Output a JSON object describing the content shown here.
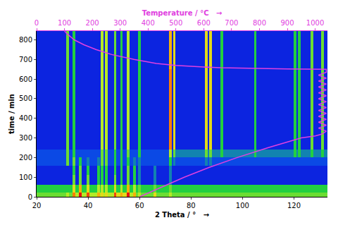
{
  "chart_data": {
    "type": "heatmap",
    "x_label": "2 Theta / °   →",
    "y_label": "time / min",
    "x2_label": "Temperature / °C   →",
    "x": [
      20,
      31.5,
      32.5,
      34,
      35,
      36.5,
      37.5,
      39.5,
      40.5,
      43.5,
      44.5,
      45,
      46,
      46.5,
      47.5,
      50,
      51,
      52.5,
      53.5,
      55,
      56,
      57.5,
      58.5,
      59.5,
      60.5,
      65.5,
      66.5,
      71.5,
      72.5,
      73,
      74,
      85.5,
      86.5,
      87,
      88,
      91.5,
      92.5,
      104.5,
      105.5,
      120,
      121,
      121.5,
      122.5,
      126.5,
      127.5,
      130.5,
      131.5,
      133
    ],
    "y": [
      0,
      20,
      60,
      110,
      160,
      200,
      240,
      650,
      845
    ],
    "cells": [
      [
        4,
        5,
        4,
        8,
        5,
        10,
        5,
        9,
        5,
        7,
        5,
        6,
        5,
        6,
        5,
        9,
        6,
        7,
        6,
        10,
        5,
        7,
        4,
        5,
        4,
        6,
        4,
        5,
        4,
        4,
        4,
        4,
        4,
        4,
        4,
        4,
        4,
        4,
        4,
        4,
        4,
        4,
        4,
        4,
        4,
        4,
        4
      ],
      [
        3,
        3,
        3,
        6,
        3,
        7,
        3,
        6,
        3,
        5,
        3,
        5,
        3,
        5,
        3,
        6,
        3,
        5,
        3,
        7,
        3,
        5,
        3,
        4,
        3,
        4,
        3,
        4,
        3,
        3,
        3,
        3,
        3,
        3,
        3,
        3,
        3,
        3,
        3,
        3,
        3,
        3,
        3,
        3,
        3,
        3,
        3
      ],
      [
        0,
        0,
        0,
        4,
        0,
        4,
        0,
        4,
        0,
        3,
        0,
        3,
        0,
        3,
        0,
        4,
        0,
        3,
        0,
        4,
        0,
        3,
        0,
        2,
        0,
        2,
        0,
        2,
        0,
        0,
        0,
        0,
        0,
        0,
        0,
        0,
        0,
        0,
        0,
        0,
        0,
        0,
        0,
        0,
        0,
        0,
        0
      ],
      [
        0,
        0,
        0,
        3,
        0,
        4,
        0,
        3,
        0,
        3,
        0,
        3,
        0,
        3,
        0,
        3,
        0,
        3,
        0,
        4,
        0,
        3,
        0,
        2,
        0,
        2,
        0,
        2,
        0,
        0,
        0,
        0,
        0,
        0,
        0,
        0,
        0,
        0,
        0,
        0,
        0,
        0,
        0,
        0,
        0,
        0,
        0
      ],
      [
        1,
        4,
        1,
        4,
        1,
        3,
        1,
        2,
        1,
        2,
        1,
        4,
        1,
        4,
        1,
        3,
        1,
        3,
        1,
        3,
        1,
        2,
        1,
        2,
        1,
        1,
        1,
        3,
        1,
        2,
        1,
        2,
        1,
        2,
        1,
        1,
        1,
        1,
        1,
        1,
        1,
        1,
        1,
        1,
        1,
        1,
        1
      ],
      [
        1,
        4,
        1,
        3,
        1,
        1,
        1,
        1,
        1,
        1,
        1,
        4,
        1,
        4,
        1,
        3,
        1,
        3,
        1,
        4,
        1,
        1,
        1,
        3,
        1,
        1,
        1,
        5,
        1,
        4,
        2,
        4,
        2,
        4,
        2,
        3,
        2,
        3,
        2,
        3,
        2,
        3,
        2,
        3,
        2,
        3,
        2
      ],
      [
        0,
        4,
        0,
        3,
        0,
        0,
        0,
        0,
        0,
        0,
        0,
        5,
        0,
        5,
        0,
        4,
        0,
        3,
        0,
        5,
        0,
        0,
        0,
        3,
        0,
        0,
        0,
        8,
        0,
        6,
        0,
        6,
        0,
        6,
        0,
        3,
        0,
        3,
        0,
        3,
        0,
        3,
        0,
        4,
        0,
        4,
        0
      ],
      [
        0,
        4,
        0,
        3,
        0,
        0,
        0,
        0,
        0,
        0,
        0,
        5,
        0,
        5,
        0,
        4,
        0,
        3,
        0,
        5,
        0,
        0,
        0,
        3,
        0,
        0,
        0,
        7,
        0,
        6,
        0,
        6,
        0,
        6,
        0,
        3,
        0,
        3,
        0,
        3,
        0,
        3,
        0,
        4,
        0,
        4,
        0
      ]
    ],
    "zlim": [
      0,
      10
    ],
    "xlim": [
      20,
      133
    ],
    "xticks": [
      20,
      40,
      60,
      80,
      100,
      120
    ],
    "ylim": [
      0,
      845
    ],
    "yticks": [
      0,
      100,
      200,
      300,
      400,
      500,
      600,
      700,
      800
    ],
    "x2lim": [
      0,
      1044
    ],
    "x2ticks": [
      0,
      100,
      200,
      300,
      400,
      500,
      600,
      700,
      800,
      900,
      1000
    ],
    "series": [
      {
        "type": "line",
        "axis": "x2",
        "color": "#e040e0",
        "x": [
          370,
          450,
          530,
          620,
          720,
          830,
          950,
          1000,
          1025,
          1040,
          1012,
          1040,
          1012,
          1040,
          1012,
          1040,
          1012,
          1040,
          1012,
          1040,
          1012,
          1040,
          1012,
          1040,
          1012,
          1040,
          1012,
          1040,
          1012,
          1040,
          1040,
          900,
          760,
          660,
          600,
          500,
          430,
          350,
          270,
          215,
          170,
          135,
          110,
          100
        ],
        "y": [
          0,
          50,
          100,
          150,
          200,
          250,
          300,
          310,
          320,
          335,
          350,
          365,
          380,
          395,
          410,
          425,
          440,
          455,
          470,
          485,
          500,
          515,
          530,
          545,
          560,
          575,
          590,
          605,
          620,
          635,
          650,
          652,
          655,
          658,
          662,
          670,
          680,
          700,
          725,
          750,
          775,
          800,
          830,
          845
        ]
      }
    ]
  }
}
